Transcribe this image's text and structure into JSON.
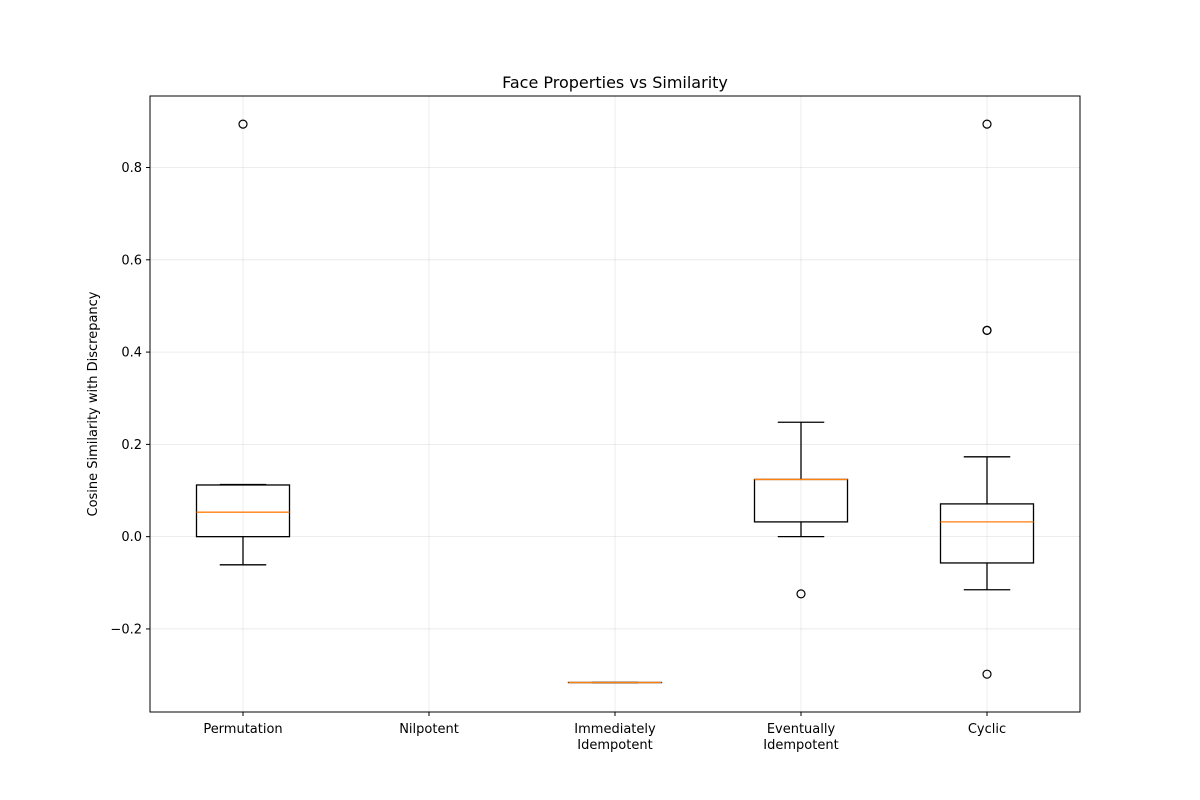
{
  "chart_data": {
    "type": "box",
    "title": "Face Properties vs Similarity",
    "xlabel": "",
    "ylabel": "Cosine Similarity with Discrepancy",
    "ylim": [
      -0.38,
      0.955
    ],
    "yticks": [
      -0.2,
      0.0,
      0.2,
      0.4,
      0.6,
      0.8
    ],
    "ytick_labels": [
      "−0.2",
      "0.0",
      "0.2",
      "0.4",
      "0.6",
      "0.8"
    ],
    "grid": true,
    "categories": [
      [
        "Permutation"
      ],
      [
        "Nilpotent"
      ],
      [
        "Immediately",
        "Idempotent"
      ],
      [
        "Eventually",
        "Idempotent"
      ],
      [
        "Cyclic"
      ]
    ],
    "boxes": [
      {
        "whislo": -0.061,
        "q1": 0.0,
        "med": 0.053,
        "q3": 0.112,
        "whishi": 0.113,
        "fliers": [
          0.894
        ]
      },
      null,
      {
        "whislo": -0.316,
        "q1": -0.316,
        "med": -0.316,
        "q3": -0.316,
        "whishi": -0.316,
        "fliers": []
      },
      {
        "whislo": 0.0,
        "q1": 0.032,
        "med": 0.124,
        "q3": 0.124,
        "whishi": 0.248,
        "fliers": [
          -0.124
        ]
      },
      {
        "whislo": -0.115,
        "q1": -0.057,
        "med": 0.032,
        "q3": 0.071,
        "whishi": 0.173,
        "fliers": [
          0.894,
          0.447,
          0.447,
          -0.298
        ]
      }
    ],
    "colors": {
      "box": "#000000",
      "median": "#ff7f0e",
      "grid": "#b0b0b0"
    }
  }
}
